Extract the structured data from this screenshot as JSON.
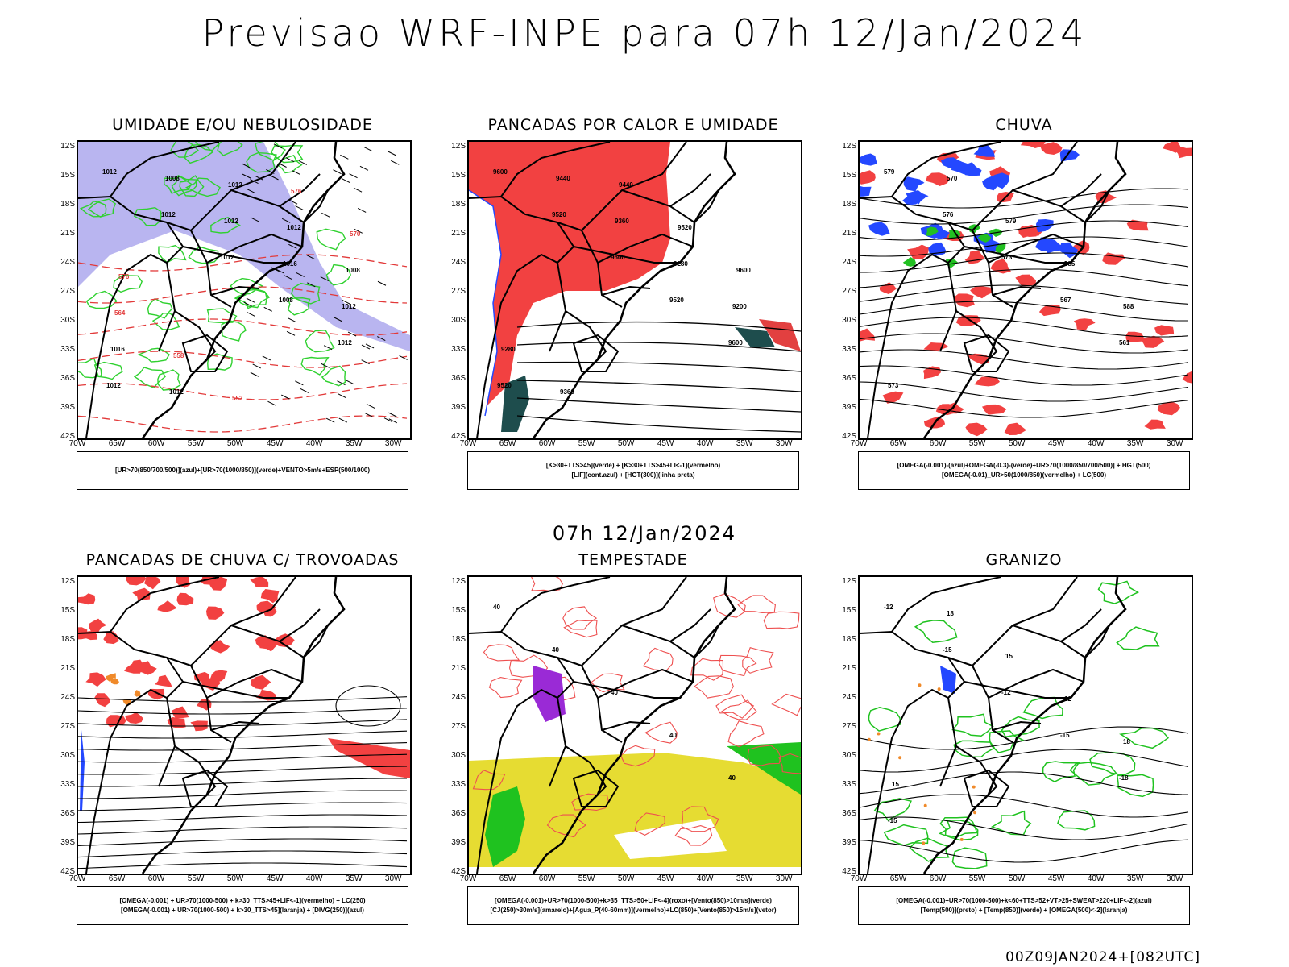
{
  "title": "Previsao WRF-INPE  para 07h 12/Jan/2024",
  "mid_title": "07h 12/Jan/2024",
  "footer": "00Z09JAN2024+[082UTC]",
  "lat_labels": [
    "12S",
    "15S",
    "18S",
    "21S",
    "24S",
    "27S",
    "30S",
    "33S",
    "36S",
    "39S",
    "42S"
  ],
  "lon_labels": [
    "70W",
    "65W",
    "60W",
    "55W",
    "50W",
    "45W",
    "40W",
    "35W",
    "30W"
  ],
  "panels": [
    {
      "title": "UMIDADE E/OU NEBULOSIDADE",
      "legend": [
        "[UR>70(850/700/500)](azul)+[UR>70(1000/850)](verde)+VENTO>5m/s+ESP(500/1000)"
      ],
      "labels": [
        "1012",
        "1012",
        "1012",
        "1008",
        "1012",
        "1012",
        "1008",
        "1012",
        "1016",
        "1012",
        "1016",
        "1012",
        "1012",
        "1012",
        "1008",
        "564",
        "558",
        "552",
        "576",
        "570",
        "576"
      ]
    },
    {
      "title": "PANCADAS POR CALOR E UMIDADE",
      "legend": [
        "[K>30+TTS>45](verde) + [K>30+TTS>45+LI<-1](vermelho)",
        "[LIF](cont.azul) + [HGT(300)](linha preta)"
      ],
      "labels": [
        "9600",
        "9520",
        "9600",
        "9520",
        "9600",
        "9520",
        "9440",
        "9360",
        "9280",
        "9200",
        "9280",
        "9360",
        "9440",
        "9520",
        "9600"
      ]
    },
    {
      "title": "CHUVA",
      "legend": [
        "[OMEGA(-0.001)-(azul)+OMEGA(-0.3)-(verde)+UR>70(1000/850/700/500)] + HGT(500)",
        "[OMEGA(-0.01)_UR>50(1000/850)(vermelho) + LC(500)"
      ],
      "labels": [
        "579",
        "576",
        "573",
        "567",
        "561",
        "573",
        "570",
        "579",
        "585",
        "588"
      ]
    },
    {
      "title": "PANCADAS DE CHUVA C/ TROVOADAS",
      "legend": [
        "[OMEGA(-0.001) + UR>70(1000-500) + k>30_TTS>45+LIF<-1](vermelho) + LC(250)",
        "[OMEGA(-0.001) + UR>70(1000-500) + k>30_TTS>45](laranja) + [DIVG(250)](azul)"
      ],
      "labels": []
    },
    {
      "title": "TEMPESTADE",
      "legend": [
        "[OMEGA(-0.001)+UR>70(1000-500)+k>35_TTS>50+LIF<-4](roxo)+[Vento(850)>10m/s](verde)",
        "[CJ(250)>30m/s](amarelo)+[Agua_P(40-60mm)](vermelho)+LC(850)+[Vento(850)>15m/s](vetor)"
      ],
      "labels": [
        "40",
        "40",
        "40",
        "40",
        "40"
      ]
    },
    {
      "title": "GRANIZO",
      "legend": [
        "[OMEGA(-0.001)+UR>70(1000-500)+k<60+TTS>52+VT>25+SWEAT>220+LIF<-2](azul)",
        "[Temp(500)](preto) + [Temp(850)](verde) + [OMEGA(500)<-2](laranja)"
      ],
      "labels": [
        "-12",
        "-15",
        "-12",
        "-15",
        "-18",
        "-15",
        "18",
        "15",
        "12",
        "18",
        "15"
      ]
    }
  ]
}
